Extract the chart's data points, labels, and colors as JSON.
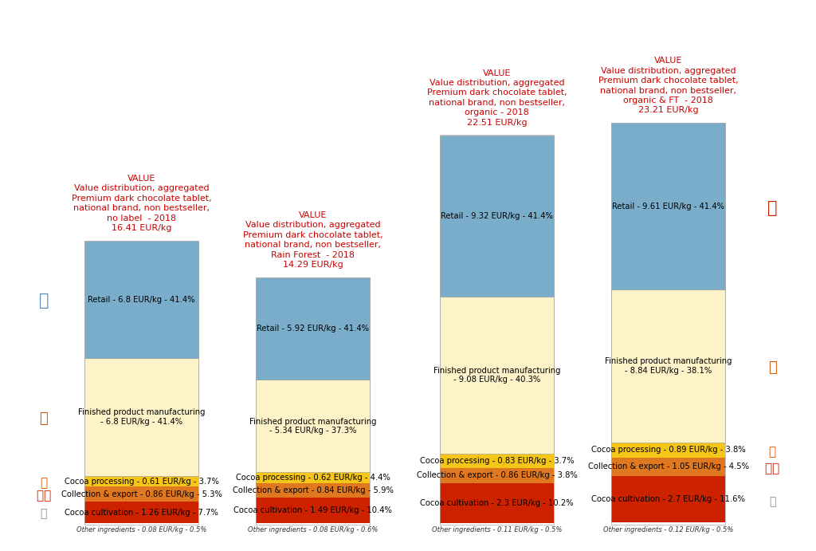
{
  "bars": [
    {
      "title": "VALUE\nValue distribution, aggregated\nPremium dark chocolate tablet,\nnational brand, non bestseller,\nno label  - 2018\n16.41 EUR/kg",
      "total": 16.41,
      "segments": [
        {
          "label": "Retail - 6.8 EUR/kg - 41.4%",
          "value": 6.8,
          "color": "#7aadc9"
        },
        {
          "label": "Finished product manufacturing\n- 6.8 EUR/kg - 41.4%",
          "value": 6.8,
          "color": "#fdf2c8"
        },
        {
          "label": "Cocoa processing - 0.61 EUR/kg - 3.7%",
          "value": 0.61,
          "color": "#f5c518"
        },
        {
          "label": "Collection & export - 0.86 EUR/kg - 5.3%",
          "value": 0.86,
          "color": "#e07820"
        },
        {
          "label": "Cocoa cultivation - 1.26 EUR/kg - 7.7%",
          "value": 1.26,
          "color": "#cc2200"
        },
        {
          "label": "Other ingredients - 0.08 EUR/kg - 0.5%",
          "value": 0.08,
          "color": "#ffffff"
        }
      ]
    },
    {
      "title": "VALUE\nValue distribution, aggregated\nPremium dark chocolate tablet,\nnational brand, non bestseller,\nRain Forest  - 2018\n14.29 EUR/kg",
      "total": 14.29,
      "segments": [
        {
          "label": "Retail - 5.92 EUR/kg - 41.4%",
          "value": 5.92,
          "color": "#7aadc9"
        },
        {
          "label": "Finished product manufacturing\n- 5.34 EUR/kg - 37.3%",
          "value": 5.34,
          "color": "#fdf2c8"
        },
        {
          "label": "Cocoa processing - 0.62 EUR/kg - 4.4%",
          "value": 0.62,
          "color": "#f5c518"
        },
        {
          "label": "Collection & export - 0.84 EUR/kg - 5.9%",
          "value": 0.84,
          "color": "#e07820"
        },
        {
          "label": "Cocoa cultivation - 1.49 EUR/kg - 10.4%",
          "value": 1.49,
          "color": "#cc2200"
        },
        {
          "label": "Other ingredients - 0.08 EUR/kg - 0.6%",
          "value": 0.08,
          "color": "#ffffff"
        }
      ]
    },
    {
      "title": "VALUE\nValue distribution, aggregated\nPremium dark chocolate tablet,\nnational brand, non bestseller,\norganic - 2018\n22.51 EUR/kg",
      "total": 22.51,
      "segments": [
        {
          "label": "Retail - 9.32 EUR/kg - 41.4%",
          "value": 9.32,
          "color": "#7aadc9"
        },
        {
          "label": "Finished product manufacturing\n- 9.08 EUR/kg - 40.3%",
          "value": 9.08,
          "color": "#fdf2c8"
        },
        {
          "label": "Cocoa processing - 0.83 EUR/kg - 3.7%",
          "value": 0.83,
          "color": "#f5c518"
        },
        {
          "label": "Collection & export - 0.86 EUR/kg - 3.8%",
          "value": 0.86,
          "color": "#e07820"
        },
        {
          "label": "Cocoa cultivation - 2.3 EUR/kg - 10.2%",
          "value": 2.3,
          "color": "#cc2200"
        },
        {
          "label": "Other ingredients - 0.11 EUR/kg - 0.5%",
          "value": 0.11,
          "color": "#ffffff"
        }
      ]
    },
    {
      "title": "VALUE\nValue distribution, aggregated\nPremium dark chocolate tablet,\nnational brand, non bestseller,\norganic & FT  - 2018\n23.21 EUR/kg",
      "total": 23.21,
      "segments": [
        {
          "label": "Retail - 9.61 EUR/kg - 41.4%",
          "value": 9.61,
          "color": "#7aadc9"
        },
        {
          "label": "Finished product manufacturing\n- 8.84 EUR/kg - 38.1%",
          "value": 8.84,
          "color": "#fdf2c8"
        },
        {
          "label": "Cocoa processing - 0.89 EUR/kg - 3.8%",
          "value": 0.89,
          "color": "#f5c518"
        },
        {
          "label": "Collection & export - 1.05 EUR/kg - 4.5%",
          "value": 1.05,
          "color": "#e07820"
        },
        {
          "label": "Cocoa cultivation - 2.7 EUR/kg - 11.6%",
          "value": 2.7,
          "color": "#cc2200"
        },
        {
          "label": "Other ingredients - 0.12 EUR/kg - 0.5%",
          "value": 0.12,
          "color": "#ffffff"
        }
      ]
    }
  ],
  "title_color": "#cc0000",
  "background_color": "#ffffff",
  "bar_positions": [
    1.35,
    2.7,
    4.15,
    5.5
  ],
  "bar_width": 0.9,
  "xlim": [
    0.3,
    6.6
  ],
  "ylim": [
    -1.2,
    30.0
  ],
  "scale": 1.0,
  "title_fontsize": 8.0,
  "label_fontsize": 7.2
}
